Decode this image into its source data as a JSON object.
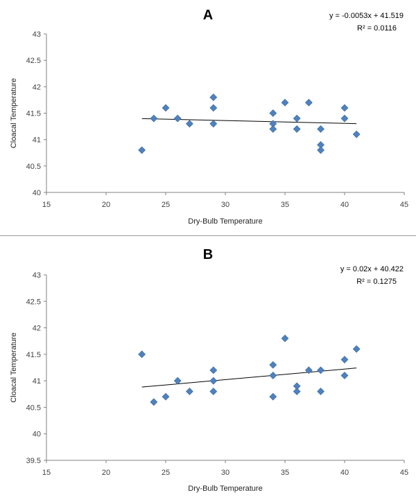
{
  "chart_data": [
    {
      "type": "scatter",
      "title": "A",
      "xlabel": "Dry-Bulb Temperature",
      "ylabel": "Cloacal Temperature",
      "xlim": [
        15,
        45
      ],
      "ylim": [
        40,
        43
      ],
      "x_ticks": [
        "15",
        "20",
        "25",
        "30",
        "35",
        "40",
        "45"
      ],
      "y_ticks": [
        "40",
        "40.5",
        "41",
        "41.5",
        "42",
        "42.5",
        "43"
      ],
      "x_tick_values": [
        15,
        20,
        25,
        30,
        35,
        40,
        45
      ],
      "y_tick_values": [
        40,
        40.5,
        41,
        41.5,
        42,
        42.5,
        43
      ],
      "grid": false,
      "marker_color": "#4f81bd",
      "trendline": {
        "slope": -0.0053,
        "intercept": 41.519,
        "x_range": [
          23,
          41
        ]
      },
      "equation": "y = -0.0053x + 41.519",
      "r_squared": "R² = 0.0116",
      "points": [
        [
          23,
          40.8
        ],
        [
          24,
          41.4
        ],
        [
          25,
          41.6
        ],
        [
          26,
          41.4
        ],
        [
          27,
          41.3
        ],
        [
          29,
          41.8
        ],
        [
          29,
          41.6
        ],
        [
          29,
          41.3
        ],
        [
          34,
          41.5
        ],
        [
          34,
          41.3
        ],
        [
          34,
          41.2
        ],
        [
          35,
          41.7
        ],
        [
          36,
          41.4
        ],
        [
          36,
          41.2
        ],
        [
          37,
          41.7
        ],
        [
          38,
          41.2
        ],
        [
          38,
          40.9
        ],
        [
          38,
          40.8
        ],
        [
          40,
          41.6
        ],
        [
          40,
          41.4
        ],
        [
          41,
          41.1
        ]
      ]
    },
    {
      "type": "scatter",
      "title": "B",
      "xlabel": "Dry-Bulb Temperature",
      "ylabel": "Cloacal Temperature",
      "xlim": [
        15,
        45
      ],
      "ylim": [
        39.5,
        43
      ],
      "x_ticks": [
        "15",
        "20",
        "25",
        "30",
        "35",
        "40",
        "45"
      ],
      "y_ticks": [
        "39.5",
        "40",
        "40.5",
        "41",
        "41.5",
        "42",
        "42.5",
        "43"
      ],
      "x_tick_values": [
        15,
        20,
        25,
        30,
        35,
        40,
        45
      ],
      "y_tick_values": [
        39.5,
        40,
        40.5,
        41,
        41.5,
        42,
        42.5,
        43
      ],
      "grid": false,
      "marker_color": "#4f81bd",
      "trendline": {
        "slope": 0.02,
        "intercept": 40.422,
        "x_range": [
          23,
          41
        ]
      },
      "equation": "y = 0.02x + 40.422",
      "r_squared": "R² = 0.1275",
      "points": [
        [
          23,
          41.5
        ],
        [
          24,
          40.6
        ],
        [
          25,
          40.7
        ],
        [
          26,
          41.0
        ],
        [
          27,
          40.8
        ],
        [
          29,
          41.2
        ],
        [
          29,
          41.0
        ],
        [
          29,
          40.8
        ],
        [
          34,
          41.3
        ],
        [
          34,
          41.1
        ],
        [
          34,
          40.7
        ],
        [
          35,
          41.8
        ],
        [
          36,
          40.9
        ],
        [
          36,
          40.8
        ],
        [
          37,
          41.2
        ],
        [
          38,
          41.2
        ],
        [
          38,
          40.8
        ],
        [
          40,
          41.4
        ],
        [
          40,
          41.1
        ],
        [
          41,
          41.6
        ]
      ]
    }
  ]
}
